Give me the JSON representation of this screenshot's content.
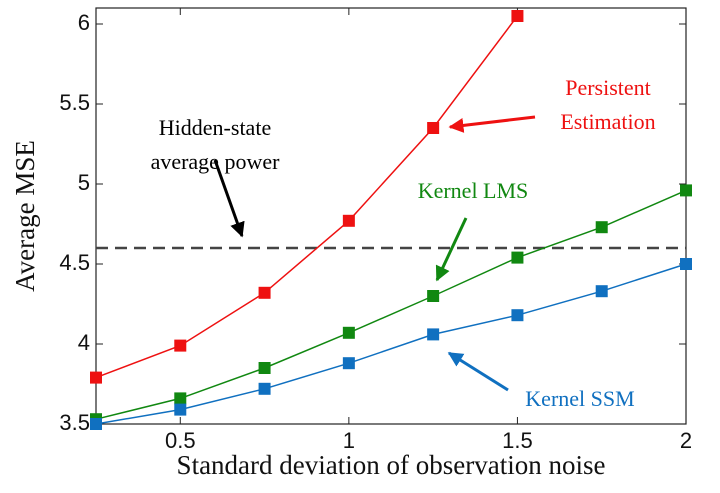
{
  "chart_data": {
    "type": "line",
    "x_label": "Standard deviation of observation noise",
    "y_label": "Average MSE",
    "x": [
      0.25,
      0.5,
      0.75,
      1,
      1.25,
      1.5,
      1.75,
      2
    ],
    "series": [
      {
        "name": "Persistent Estimation",
        "color": "#ee1111",
        "values": [
          3.79,
          3.99,
          4.32,
          4.77,
          5.35,
          6.05,
          null,
          null
        ]
      },
      {
        "name": "Kernel LMS",
        "color": "#118811",
        "values": [
          3.53,
          3.66,
          3.85,
          4.07,
          4.3,
          4.54,
          4.73,
          4.96
        ]
      },
      {
        "name": "Kernel SSM",
        "color": "#1070c0",
        "values": [
          3.5,
          3.59,
          3.72,
          3.88,
          4.06,
          4.18,
          4.33,
          4.5
        ]
      }
    ],
    "reference_line": {
      "value": 4.6,
      "color": "#444444"
    },
    "annotations": [
      {
        "lines": [
          "Hidden-state",
          "average power"
        ],
        "color": "#000000"
      },
      {
        "lines": [
          "Persistent",
          "Estimation"
        ],
        "color": "#ee1111"
      },
      {
        "lines": [
          "Kernel LMS"
        ],
        "color": "#118811"
      },
      {
        "lines": [
          "Kernel SSM"
        ],
        "color": "#1070c0"
      }
    ],
    "xlim": [
      0.25,
      2
    ],
    "xticks": [
      0.5,
      1,
      1.5,
      2
    ],
    "ylim": [
      3.5,
      6.1
    ],
    "yticks": [
      3.5,
      4,
      4.5,
      5,
      5.5,
      6
    ]
  }
}
